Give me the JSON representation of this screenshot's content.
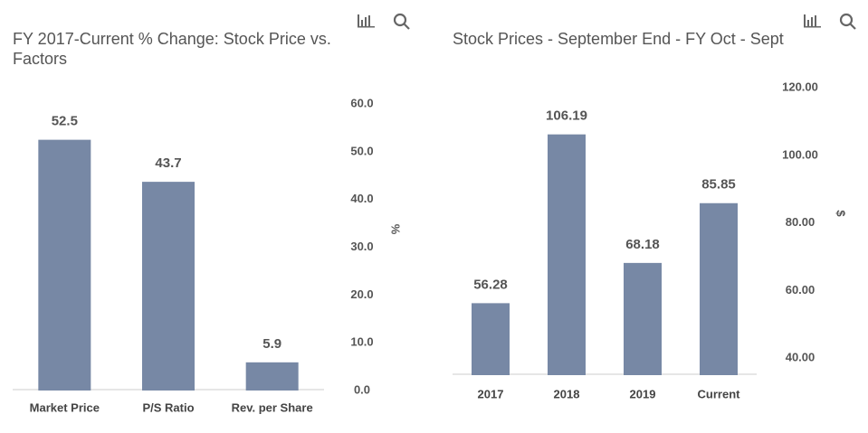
{
  "chart_data": [
    {
      "type": "bar",
      "title": "FY 2017-Current % Change: Stock Price vs. Factors",
      "categories": [
        "Market Price",
        "P/S Ratio",
        "Rev. per Share"
      ],
      "values": [
        52.5,
        43.7,
        5.9
      ],
      "color": "#7788a5",
      "ylabel": "%",
      "ylim": [
        0,
        60
      ],
      "yticks": [
        {
          "value": 0,
          "label": "0.0"
        },
        {
          "value": 10,
          "label": "10.0"
        },
        {
          "value": 20,
          "label": "20.0"
        },
        {
          "value": 30,
          "label": "30.0"
        },
        {
          "value": 40,
          "label": "40.0"
        },
        {
          "value": 50,
          "label": "50.0"
        },
        {
          "value": 60,
          "label": "60.0"
        }
      ],
      "grid": false
    },
    {
      "type": "bar",
      "title": "Stock Prices - September End - FY Oct - Sept",
      "categories": [
        "2017",
        "2018",
        "2019",
        "Current"
      ],
      "values": [
        56.28,
        106.19,
        68.18,
        85.85
      ],
      "color": "#7788a5",
      "ylabel": "$",
      "ylim": [
        35,
        120
      ],
      "yticks": [
        {
          "value": 40,
          "label": "40.00"
        },
        {
          "value": 60,
          "label": "60.00"
        },
        {
          "value": 80,
          "label": "80.00"
        },
        {
          "value": 100,
          "label": "100.00"
        },
        {
          "value": 120,
          "label": "120.00"
        }
      ],
      "grid": false
    }
  ]
}
